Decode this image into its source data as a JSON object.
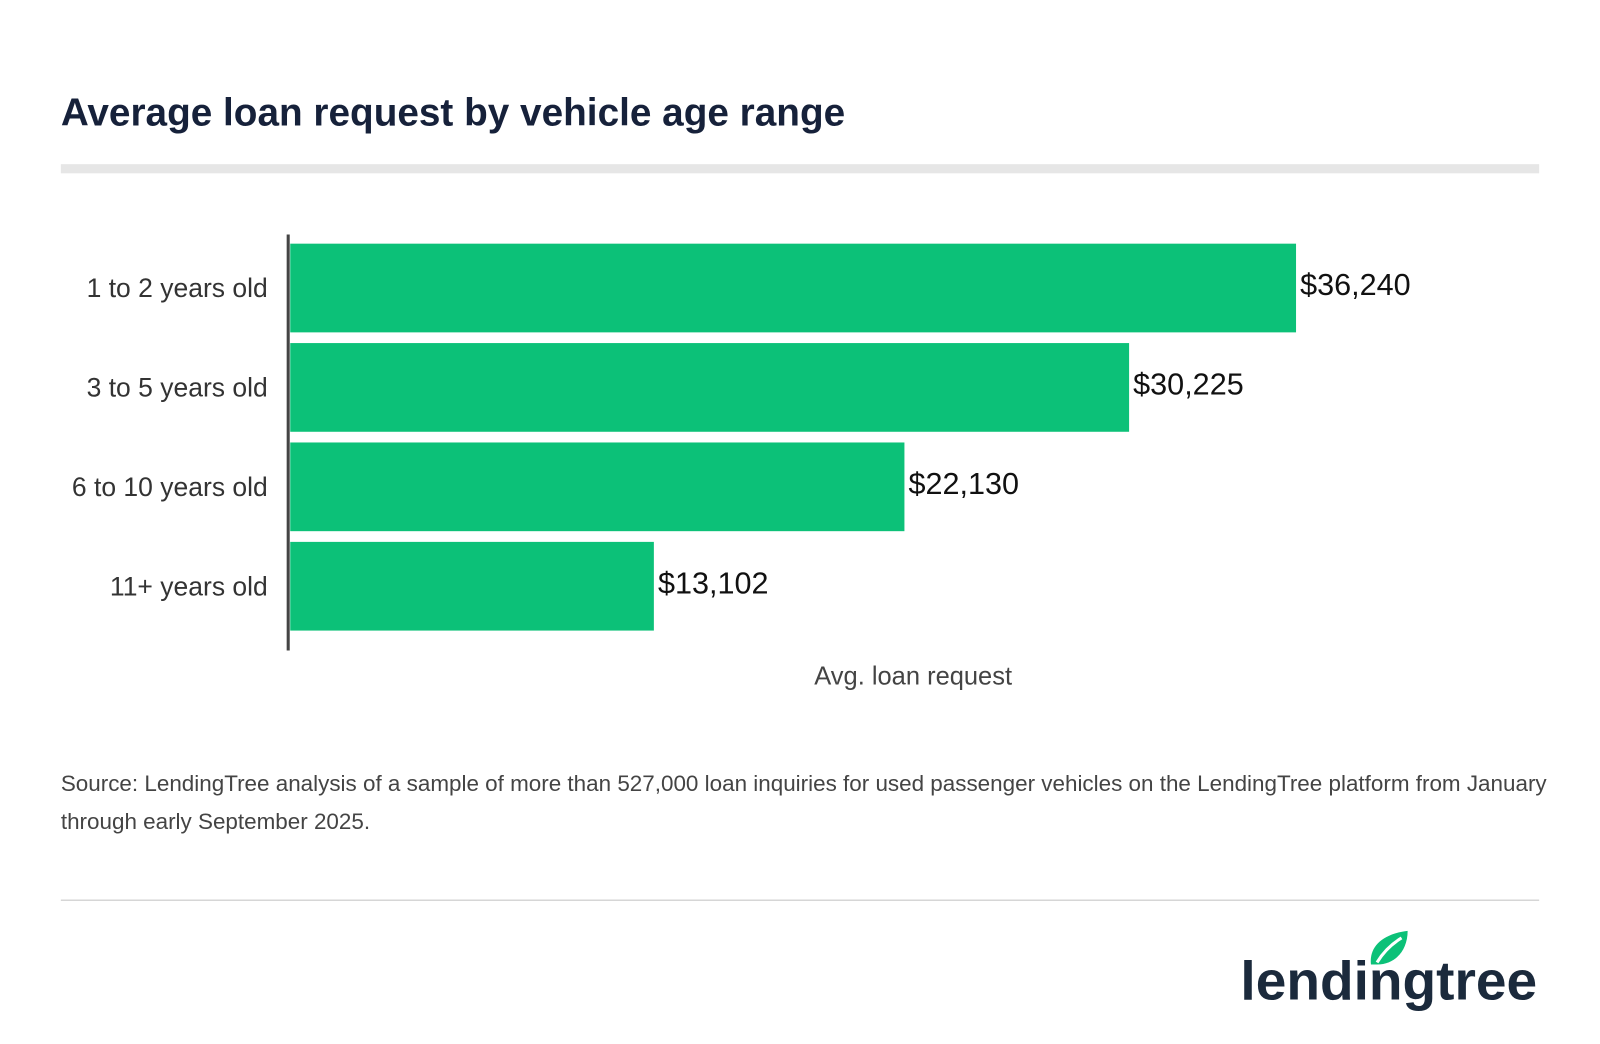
{
  "chart_data": {
    "type": "hbar",
    "title": "Average loan request by vehicle age range",
    "categories": [
      "1 to 2 years old",
      "3 to 5 years old",
      "6 to 10 years old",
      "11+ years old"
    ],
    "values": [
      36240,
      30225,
      22130,
      13102
    ],
    "value_labels": [
      "$36,240",
      "$30,225",
      "$22,130",
      "$13,102"
    ],
    "color": "#0cc178",
    "xlim": [
      0,
      45000
    ],
    "xlabel": "Avg. loan request",
    "source": "Source: LendingTree analysis of a sample of more than 527,000 loan inquiries for used passenger vehicles on the LendingTree platform from January through early September 2025."
  },
  "brand": "lendingtree"
}
